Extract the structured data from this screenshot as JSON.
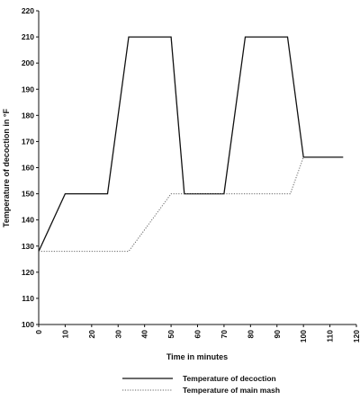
{
  "chart_data": {
    "type": "line",
    "title": "",
    "xlabel": "Time in minutes",
    "ylabel": "Temperature of decoction in °F",
    "xlim": [
      0,
      120
    ],
    "ylim": [
      100,
      220
    ],
    "xticks": [
      0,
      10,
      20,
      30,
      40,
      50,
      60,
      70,
      80,
      90,
      100,
      110,
      120
    ],
    "yticks": [
      100,
      110,
      120,
      130,
      140,
      150,
      160,
      170,
      180,
      190,
      200,
      210,
      220
    ],
    "grid": false,
    "legend_position": "bottom",
    "series": [
      {
        "name": "Temperature of decoction",
        "style": "solid",
        "color": "#111111",
        "x": [
          0,
          10,
          26,
          34,
          50,
          55,
          70,
          78,
          94,
          100,
          115
        ],
        "y": [
          128,
          150,
          150,
          210,
          210,
          150,
          150,
          210,
          210,
          164,
          164
        ]
      },
      {
        "name": "Temperature of main mash",
        "style": "dotted",
        "color": "#666666",
        "x": [
          0,
          34,
          50,
          95,
          100
        ],
        "y": [
          128,
          128,
          150,
          150,
          164
        ]
      }
    ]
  }
}
